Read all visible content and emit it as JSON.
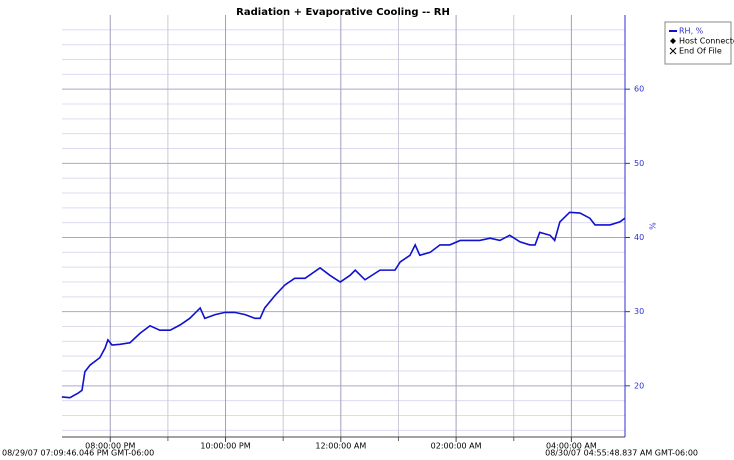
{
  "chart_data": {
    "type": "line",
    "title": "Radiation + Evaporative Cooling -- RH",
    "start_label": "08/29/07 07:09:46.046 PM GMT-06:00",
    "end_label": "08/30/07 04:55:48.837 AM GMT-06:00",
    "y_label": "%",
    "xlim": [
      19.163,
      28.93
    ],
    "xticks": [
      {
        "value": 20,
        "label": "08:00:00 PM"
      },
      {
        "value": 22,
        "label": "10:00:00 PM"
      },
      {
        "value": 24,
        "label": "12:00:00 AM"
      },
      {
        "value": 26,
        "label": "02:00:00 AM"
      },
      {
        "value": 28,
        "label": "04:00:00 AM"
      }
    ],
    "xminorticks": [
      21,
      23,
      25,
      27
    ],
    "ylim": [
      13.1,
      70
    ],
    "yticks": [
      20,
      30,
      40,
      50,
      60
    ],
    "yminorticks": [
      14,
      16,
      18,
      22,
      24,
      26,
      28,
      32,
      34,
      36,
      38,
      42,
      44,
      46,
      48,
      52,
      54,
      56,
      58,
      62,
      64,
      66,
      68
    ],
    "grid": true,
    "axis_color": "#3030d0",
    "legend_extra": [
      {
        "name": "Host Connected",
        "marker": "diamond"
      },
      {
        "name": "End Of File",
        "marker": "cross"
      }
    ],
    "series": [
      {
        "name": "RH, %",
        "color": "#1010d0",
        "x": [
          19.16,
          19.3,
          19.44,
          19.51,
          19.56,
          19.65,
          19.82,
          19.91,
          19.96,
          20.03,
          20.17,
          20.34,
          20.52,
          20.69,
          20.86,
          21.04,
          21.21,
          21.38,
          21.56,
          21.64,
          21.82,
          21.99,
          22.16,
          22.34,
          22.51,
          22.6,
          22.68,
          22.86,
          23.03,
          23.2,
          23.38,
          23.64,
          23.81,
          23.99,
          24.16,
          24.25,
          24.42,
          24.68,
          24.94,
          25.03,
          25.2,
          25.29,
          25.37,
          25.55,
          25.72,
          25.89,
          26.07,
          26.24,
          26.41,
          26.59,
          26.76,
          26.93,
          27.11,
          27.28,
          27.37,
          27.45,
          27.63,
          27.71,
          27.8,
          27.97,
          28.15,
          28.32,
          28.41,
          28.67,
          28.84,
          28.93
        ],
        "values": [
          18.5,
          18.4,
          19.0,
          19.4,
          21.9,
          22.8,
          23.8,
          25.1,
          26.2,
          25.5,
          25.6,
          25.8,
          27.1,
          28.1,
          27.5,
          27.5,
          28.2,
          29.1,
          30.5,
          29.1,
          29.6,
          29.9,
          29.9,
          29.6,
          29.1,
          29.1,
          30.5,
          32.2,
          33.6,
          34.5,
          34.5,
          35.9,
          34.9,
          34.0,
          34.9,
          35.6,
          34.3,
          35.6,
          35.6,
          36.7,
          37.6,
          39.0,
          37.6,
          38.0,
          39.0,
          39.0,
          39.6,
          39.6,
          39.6,
          39.9,
          39.6,
          40.3,
          39.4,
          39.0,
          39.0,
          40.7,
          40.3,
          39.6,
          42.1,
          43.4,
          43.3,
          42.6,
          41.7,
          41.7,
          42.1,
          42.6
        ]
      }
    ]
  }
}
